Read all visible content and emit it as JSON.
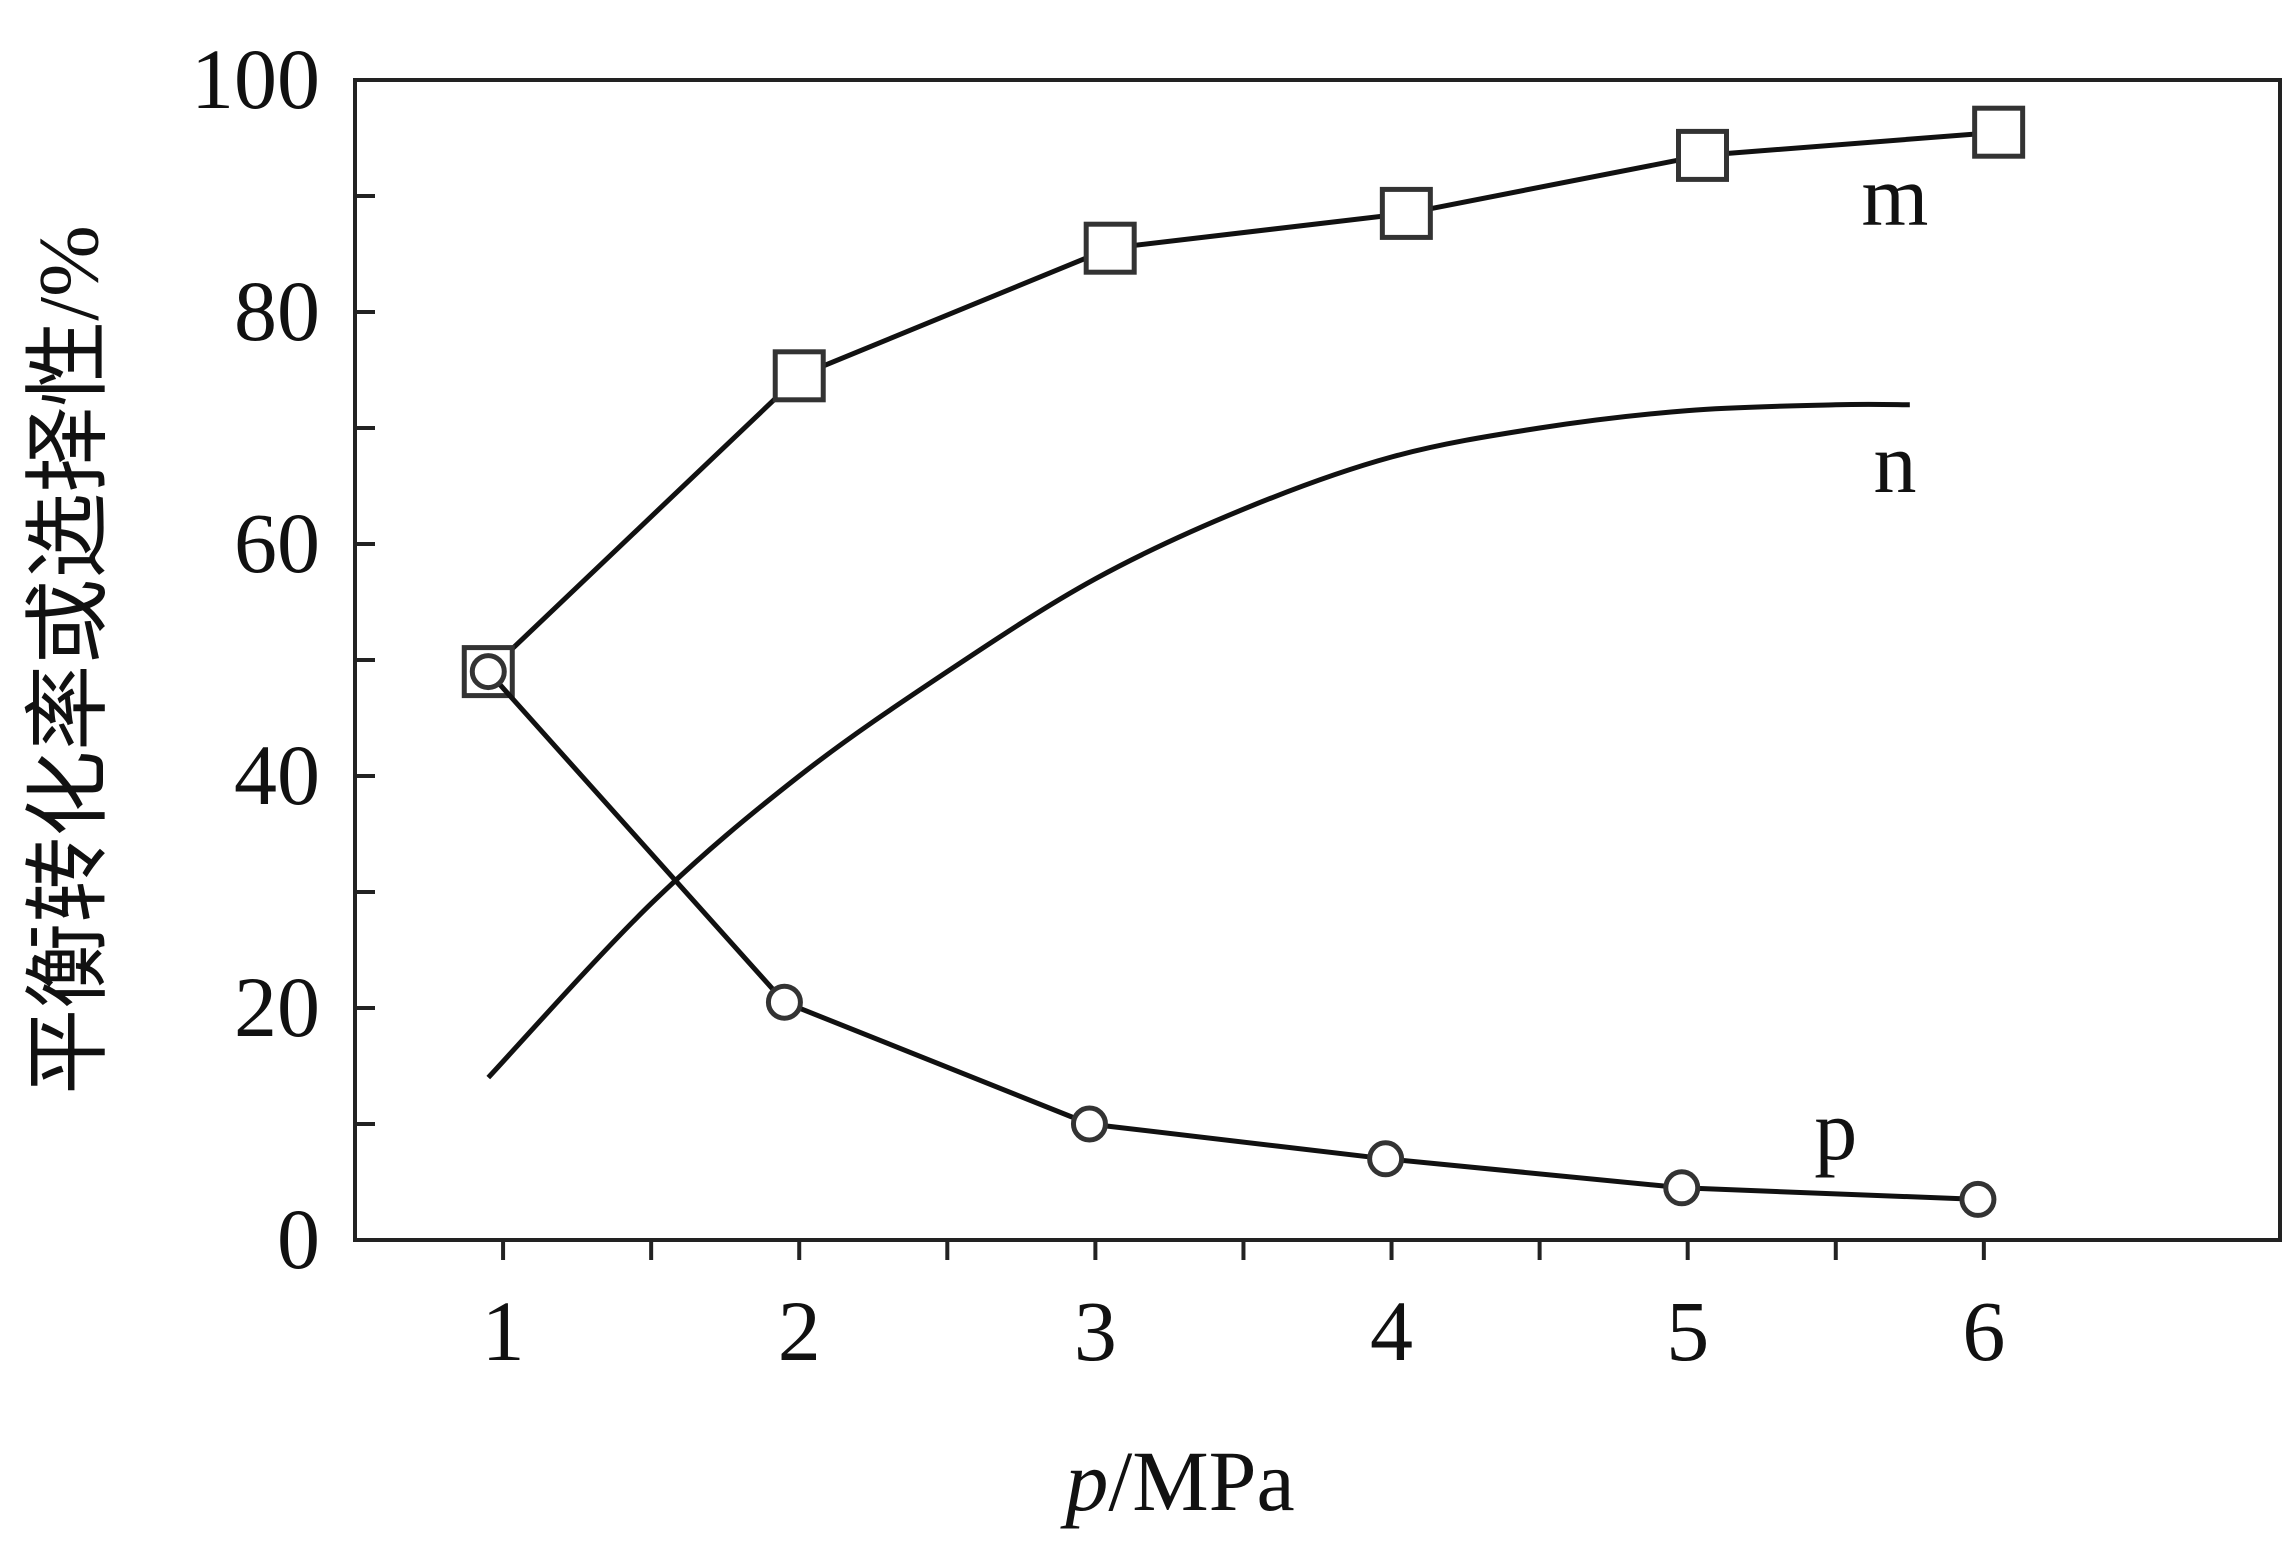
{
  "chart_data": {
    "type": "line",
    "xlabel": {
      "italic": "p",
      "rest": "/MPa"
    },
    "ylabel": "平衡转化率或选择性/%",
    "xlim": [
      0.5,
      7.0
    ],
    "ylim": [
      0,
      100
    ],
    "x_ticks": [
      1,
      2,
      3,
      4,
      5,
      6
    ],
    "x_tick_labels": [
      "1",
      "2",
      "3",
      "4",
      "5",
      "6"
    ],
    "x_minor_ticks": [
      1.5,
      2.5,
      3.5,
      4.5,
      5.5
    ],
    "y_ticks": [
      0,
      20,
      40,
      60,
      80,
      100
    ],
    "y_tick_labels": [
      "0",
      "20",
      "40",
      "60",
      "80",
      "100"
    ],
    "y_minor_ticks": [
      10,
      30,
      50,
      70,
      90
    ],
    "grid": false,
    "series": [
      {
        "name": "m",
        "marker": "square",
        "smooth": false,
        "x": [
          0.95,
          2.0,
          3.05,
          4.05,
          5.05,
          6.05
        ],
        "y": [
          49,
          74.5,
          85.5,
          88.5,
          93.5,
          95.5
        ],
        "label_pos": [
          5.7,
          87.5
        ]
      },
      {
        "name": "n",
        "marker": "none",
        "smooth": true,
        "x": [
          0.95,
          1.5,
          2.0,
          2.5,
          3.0,
          3.5,
          4.0,
          4.5,
          5.0,
          5.5,
          5.75
        ],
        "y": [
          14,
          29,
          40,
          49,
          57,
          63,
          67.5,
          70,
          71.5,
          72,
          72
        ],
        "label_pos": [
          5.7,
          64.5
        ]
      },
      {
        "name": "p",
        "marker": "circle",
        "smooth": false,
        "x": [
          0.95,
          1.95,
          2.98,
          3.98,
          4.98,
          5.98
        ],
        "y": [
          49,
          20.5,
          10,
          7,
          4.5,
          3.5
        ],
        "label_pos": [
          5.5,
          7
        ]
      }
    ]
  }
}
